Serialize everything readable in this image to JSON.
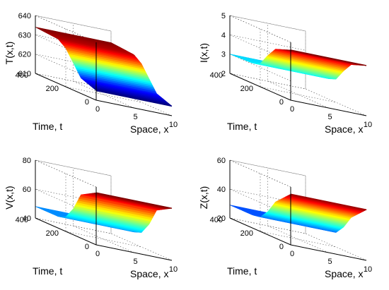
{
  "colors": {
    "colormap": "jet",
    "axis": "#000000",
    "grid": "#555555",
    "background": "#ffffff"
  },
  "chart_data": [
    {
      "type": "surface",
      "zlabel": "T(x,t)",
      "ylabel": "Time, t",
      "xlabel": "Space, x",
      "xlim": [
        0,
        10
      ],
      "ylim": [
        0,
        400
      ],
      "zlim": [
        610,
        640
      ],
      "xticks": [
        "0",
        "5",
        "10"
      ],
      "yticks": [
        "0",
        "200",
        "400"
      ],
      "zticks": [
        "610",
        "620",
        "630",
        "640"
      ],
      "grid": true,
      "profile": {
        "x": [
          0,
          5,
          10
        ],
        "t": [
          0,
          100,
          150,
          200,
          250,
          400
        ],
        "z_at_t": [
          615,
          618,
          624,
          630,
          633,
          634
        ]
      },
      "colorscale": [
        615,
        634
      ]
    },
    {
      "type": "surface",
      "zlabel": "I(x,t)",
      "ylabel": "Time, t",
      "xlabel": "Space, x",
      "xlim": [
        0,
        10
      ],
      "ylim": [
        0,
        400
      ],
      "zlim": [
        2,
        5
      ],
      "xticks": [
        "0",
        "5",
        "10"
      ],
      "yticks": [
        "0",
        "200",
        "400"
      ],
      "zticks": [
        "2",
        "3",
        "4",
        "5"
      ],
      "grid": true,
      "profile": {
        "x": [
          0,
          5,
          10
        ],
        "t": [
          0,
          100,
          150,
          200,
          250,
          400
        ],
        "z_at_t": [
          4.6,
          4.3,
          3.8,
          3.2,
          3.05,
          3.0
        ]
      },
      "colorscale": [
        2.2,
        4.6
      ]
    },
    {
      "type": "surface",
      "zlabel": "V(x,t)",
      "ylabel": "Time, t",
      "xlabel": "Space, x",
      "xlim": [
        0,
        10
      ],
      "ylim": [
        0,
        400
      ],
      "zlim": [
        40,
        80
      ],
      "xticks": [
        "0",
        "5",
        "10"
      ],
      "yticks": [
        "0",
        "200",
        "400"
      ],
      "zticks": [
        "40",
        "60",
        "80"
      ],
      "grid": true,
      "profile": {
        "x": [
          0,
          5,
          10
        ],
        "t": [
          0,
          100,
          150,
          200,
          250,
          400
        ],
        "z_at_t": [
          76,
          70,
          58,
          50,
          48,
          48
        ]
      },
      "colorscale": [
        38,
        76
      ]
    },
    {
      "type": "surface",
      "zlabel": "Z(x,t)",
      "ylabel": "Time, t",
      "xlabel": "Space, x",
      "xlim": [
        0,
        10
      ],
      "ylim": [
        0,
        400
      ],
      "zlim": [
        20,
        60
      ],
      "xticks": [
        "0",
        "5",
        "10"
      ],
      "yticks": [
        "0",
        "200",
        "400"
      ],
      "zticks": [
        "20",
        "40",
        "60"
      ],
      "grid": true,
      "profile": {
        "x": [
          0,
          5,
          10
        ],
        "t": [
          0,
          100,
          150,
          200,
          250,
          400
        ],
        "z_at_t": [
          55,
          45,
          36,
          30,
          29,
          29
        ]
      },
      "colorscale": [
        22,
        56
      ]
    }
  ]
}
